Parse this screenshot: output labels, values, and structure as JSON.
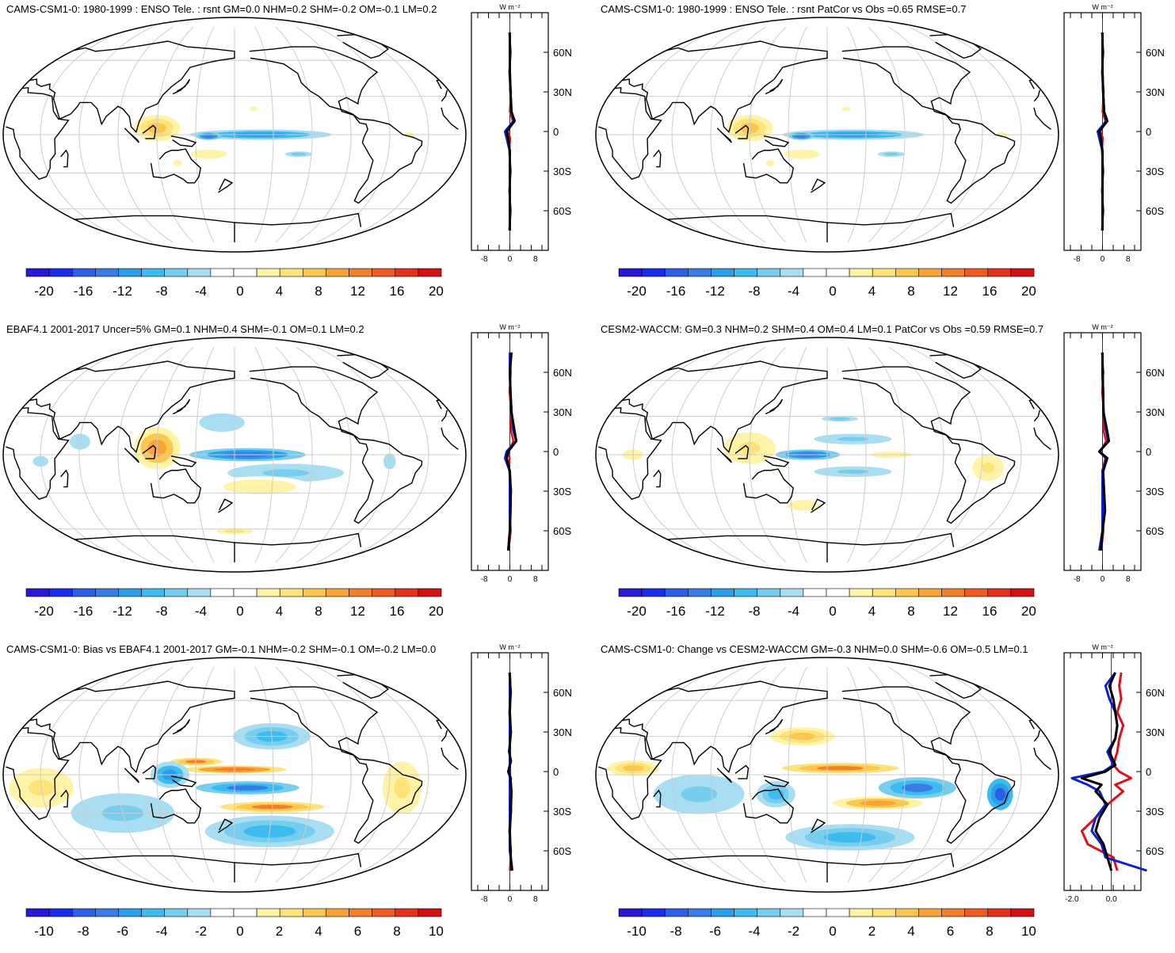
{
  "figure": {
    "latitude_ticks": [
      "60N",
      "30N",
      "0",
      "30S",
      "60S"
    ],
    "unit_label": "W m⁻²",
    "colors": {
      "ocean": "#ffffff",
      "land_outline": "#000000",
      "graticule": "#cccccc",
      "model_line": "#000000",
      "obs_line": "#0b1fd6",
      "diff_line": "#e0101a"
    }
  },
  "panels": [
    {
      "title": "CAMS-CSM1-0: 1980-1999 : ENSO Tele. : rsnt GM=0.0 NHM=0.2 SHM=-0.2 OM=-0.1 LM=0.2",
      "colorbar": [
        "-20",
        "-16",
        "-12",
        "-8",
        "-4",
        "0",
        "4",
        "8",
        "12",
        "16",
        "20"
      ],
      "zonal_ticks": [
        "-8",
        "0",
        "8"
      ]
    },
    {
      "title": "CAMS-CSM1-0: 1980-1999 : ENSO Tele. : rsnt PatCor vs Obs =0.65 RMSE=0.7",
      "colorbar": [
        "-20",
        "-16",
        "-12",
        "-8",
        "-4",
        "0",
        "4",
        "8",
        "12",
        "16",
        "20"
      ],
      "zonal_ticks": [
        "-8",
        "0",
        "8"
      ]
    },
    {
      "title": "EBAF4.1 2001-2017 Uncer=5% GM=0.1 NHM=0.4 SHM=-0.1 OM=0.1 LM=0.2",
      "colorbar": [
        "-20",
        "-16",
        "-12",
        "-8",
        "-4",
        "0",
        "4",
        "8",
        "12",
        "16",
        "20"
      ],
      "zonal_ticks": [
        "-8",
        "0",
        "8"
      ]
    },
    {
      "title": "CESM2-WACCM: GM=0.3 NHM=0.2 SHM=0.4 OM=0.4 LM=0.1 PatCor vs Obs =0.59 RMSE=0.7",
      "colorbar": [
        "-20",
        "-16",
        "-12",
        "-8",
        "-4",
        "0",
        "4",
        "8",
        "12",
        "16",
        "20"
      ],
      "zonal_ticks": [
        "-8",
        "0",
        "8"
      ]
    },
    {
      "title": "CAMS-CSM1-0: Bias vs EBAF4.1 2001-2017 GM=-0.1 NHM=-0.2 SHM=-0.1 OM=-0.2 LM=0.0",
      "colorbar": [
        "-10",
        "-8",
        "-6",
        "-4",
        "-2",
        "0",
        "2",
        "4",
        "6",
        "8",
        "10"
      ],
      "zonal_ticks": [
        "-8",
        "0",
        "8"
      ]
    },
    {
      "title": "CAMS-CSM1-0: Change vs CESM2-WACCM GM=-0.3 NHM=0.0 SHM=-0.6 OM=-0.5 LM=0.1",
      "colorbar": [
        "-10",
        "-8",
        "-6",
        "-4",
        "-2",
        "0",
        "2",
        "4",
        "6",
        "8",
        "10"
      ],
      "zonal_ticks": [
        "-2.0",
        "0.0"
      ]
    }
  ],
  "chart_data": [
    {
      "type": "heatmap",
      "title": "CAMS-CSM1-0: 1980-1999 : ENSO Tele. : rsnt GM=0.0 NHM=0.2 SHM=-0.2 OM=-0.1 LM=0.2",
      "colorbar_range": [
        -20,
        20
      ],
      "zonal_mean": {
        "lat": [
          75,
          60,
          45,
          30,
          15,
          8,
          0,
          -5,
          -15,
          -30,
          -45,
          -60,
          -75
        ],
        "model": [
          0,
          0,
          0,
          0.2,
          0.5,
          1.5,
          -1.0,
          -0.5,
          0,
          0,
          0,
          0,
          0
        ],
        "obs": [
          0,
          0,
          0,
          0.2,
          0.5,
          1.2,
          -1.5,
          -1.0,
          0,
          0,
          0,
          0,
          0
        ],
        "xlim": [
          -12,
          12
        ]
      }
    },
    {
      "type": "heatmap",
      "title": "CAMS-CSM1-0: 1980-1999 : ENSO Tele. : rsnt PatCor vs Obs =0.65 RMSE=0.7",
      "colorbar_range": [
        -20,
        20
      ],
      "zonal_mean": {
        "lat": [
          75,
          60,
          45,
          30,
          15,
          8,
          0,
          -5,
          -15,
          -30,
          -45,
          -60,
          -75
        ],
        "model": [
          0,
          0,
          0,
          0.2,
          0.5,
          1.5,
          -1.0,
          -0.5,
          0,
          0,
          0,
          0,
          0
        ],
        "obs": [
          0,
          0,
          0,
          0.2,
          0.5,
          1.2,
          -1.5,
          -1.0,
          0,
          0,
          0,
          0,
          0
        ],
        "xlim": [
          -12,
          12
        ]
      }
    },
    {
      "type": "heatmap",
      "title": "EBAF4.1 2001-2017 Uncer=5% GM=0.1 NHM=0.4 SHM=-0.1 OM=0.1 LM=0.2",
      "colorbar_range": [
        -20,
        20
      ],
      "zonal_mean": {
        "lat": [
          75,
          60,
          45,
          30,
          15,
          8,
          0,
          -5,
          -15,
          -30,
          -45,
          -60,
          -75
        ],
        "model": [
          0.5,
          0,
          0.2,
          0.5,
          1.5,
          2.0,
          -0.5,
          -1.0,
          0,
          0.3,
          0.2,
          0,
          -0.5
        ],
        "obs": [
          0,
          0,
          0.2,
          0.5,
          1.2,
          2.0,
          -1.0,
          -1.5,
          0,
          0,
          0,
          0,
          -0.5
        ],
        "xlim": [
          -12,
          12
        ]
      }
    },
    {
      "type": "heatmap",
      "title": "CESM2-WACCM: GM=0.3 NHM=0.2 SHM=0.4 OM=0.4 LM=0.1 PatCor vs Obs =0.59 RMSE=0.7",
      "colorbar_range": [
        -20,
        20
      ],
      "zonal_mean": {
        "lat": [
          75,
          60,
          45,
          30,
          15,
          8,
          0,
          -5,
          -15,
          -30,
          -45,
          -60,
          -75
        ],
        "model": [
          0,
          0,
          0.2,
          0.3,
          1.5,
          2.0,
          -1.0,
          1.5,
          0.2,
          0.5,
          0.8,
          0,
          -0.5
        ],
        "obs": [
          0,
          0,
          0.2,
          0.3,
          1.2,
          1.8,
          -1.0,
          1.2,
          0,
          0,
          0,
          0,
          -1.0
        ],
        "xlim": [
          -12,
          12
        ]
      }
    },
    {
      "type": "heatmap",
      "title": "CAMS-CSM1-0: Bias vs EBAF4.1 2001-2017 GM=-0.1 NHM=-0.2 SHM=-0.1 OM=-0.2 LM=0.0",
      "colorbar_range": [
        -10,
        10
      ],
      "zonal_mean": {
        "lat": [
          75,
          60,
          45,
          30,
          15,
          8,
          0,
          -5,
          -15,
          -30,
          -45,
          -60,
          -75
        ],
        "model": [
          0,
          0.2,
          0,
          0.3,
          -0.2,
          0.3,
          -0.5,
          0.2,
          0.5,
          0.3,
          0,
          0.2,
          0.5
        ],
        "obs": [
          0,
          0,
          0,
          0,
          0,
          0,
          0,
          0,
          0,
          0,
          0,
          0,
          0.8
        ],
        "xlim": [
          -12,
          12
        ]
      }
    },
    {
      "type": "heatmap",
      "title": "CAMS-CSM1-0: Change vs CESM2-WACCM GM=-0.3 NHM=0.0 SHM=-0.6 OM=-0.5 LM=0.1",
      "colorbar_range": [
        -10,
        10
      ],
      "zonal_mean": {
        "lat": [
          75,
          65,
          55,
          45,
          35,
          25,
          15,
          5,
          0,
          -5,
          -10,
          -15,
          -25,
          -35,
          -45,
          -55,
          -65,
          -75
        ],
        "model": [
          0.2,
          -0.1,
          0.1,
          0.2,
          0.3,
          0.2,
          -0.1,
          0.2,
          -0.3,
          -1.5,
          -0.5,
          -0.8,
          -0.2,
          -0.6,
          -0.8,
          -0.4,
          -0.2,
          0.0
        ],
        "obs": [
          0.2,
          -0.3,
          -0.1,
          0.2,
          0.3,
          0.2,
          -0.2,
          0.1,
          -0.4,
          -2.0,
          -1.2,
          -0.6,
          -0.3,
          -0.8,
          -1.0,
          -0.5,
          -0.3,
          1.8
        ],
        "diff": [
          0.5,
          0.4,
          0.5,
          0.3,
          0.6,
          0.4,
          0.3,
          0.1,
          0.4,
          1.0,
          0.2,
          0.6,
          -0.2,
          -0.8,
          -1.5,
          -1.2,
          0.1,
          0.3
        ],
        "xlim": [
          -2.4,
          1.5
        ]
      }
    }
  ]
}
